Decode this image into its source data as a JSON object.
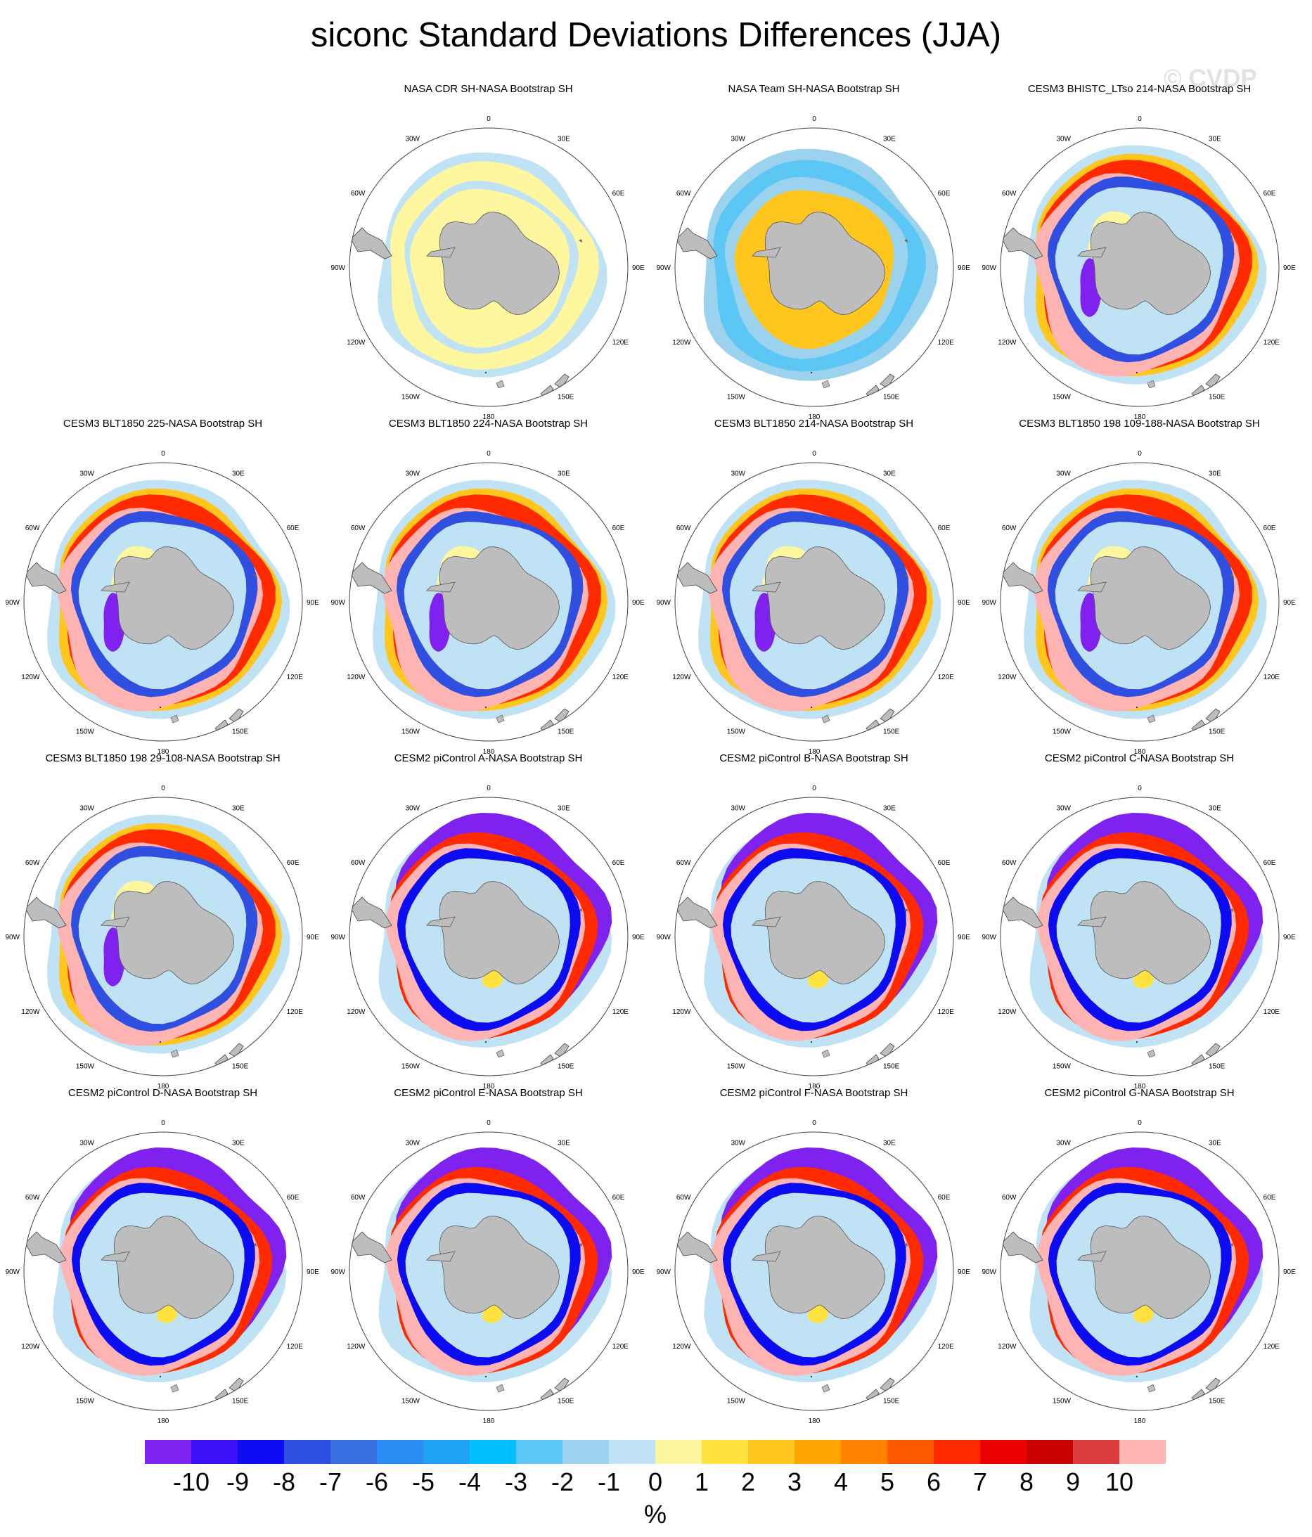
{
  "title": "siconc Standard Deviations Differences (JJA)",
  "watermark": "© CVDP",
  "chart_data": {
    "type": "polar_map_grid",
    "projection": "south polar stereographic",
    "variable": "siconc",
    "season": "JJA",
    "longitude_labels": [
      "0",
      "30E",
      "60E",
      "90E",
      "120E",
      "150E",
      "180",
      "150W",
      "120W",
      "90W",
      "60W",
      "30W"
    ],
    "panels": [
      {
        "title": "",
        "pattern": "blank"
      },
      {
        "title": "NASA CDR SH-NASA Bootstrap SH",
        "pattern": "cdr"
      },
      {
        "title": "NASA Team SH-NASA Bootstrap SH",
        "pattern": "team"
      },
      {
        "title": "CESM3 BHISTC_LTso 214-NASA Bootstrap SH",
        "pattern": "cesm3"
      },
      {
        "title": "CESM3 BLT1850 225-NASA Bootstrap SH",
        "pattern": "cesm3"
      },
      {
        "title": "CESM3 BLT1850 224-NASA Bootstrap SH",
        "pattern": "cesm3"
      },
      {
        "title": "CESM3 BLT1850 214-NASA Bootstrap SH",
        "pattern": "cesm3"
      },
      {
        "title": "CESM3 BLT1850 198 109-188-NASA Bootstrap SH",
        "pattern": "cesm3"
      },
      {
        "title": "CESM3 BLT1850 198 29-108-NASA Bootstrap SH",
        "pattern": "cesm3"
      },
      {
        "title": "CESM2 piControl A-NASA Bootstrap SH",
        "pattern": "cesm2"
      },
      {
        "title": "CESM2 piControl B-NASA Bootstrap SH",
        "pattern": "cesm2"
      },
      {
        "title": "CESM2 piControl C-NASA Bootstrap SH",
        "pattern": "cesm2"
      },
      {
        "title": "CESM2 piControl D-NASA Bootstrap SH",
        "pattern": "cesm2"
      },
      {
        "title": "CESM2 piControl E-NASA Bootstrap SH",
        "pattern": "cesm2"
      },
      {
        "title": "CESM2 piControl F-NASA Bootstrap SH",
        "pattern": "cesm2"
      },
      {
        "title": "CESM2 piControl G-NASA Bootstrap SH",
        "pattern": "cesm2"
      }
    ],
    "colorbar": {
      "unit": "%",
      "tick_labels": [
        "-10",
        "-9",
        "-8",
        "-7",
        "-6",
        "-5",
        "-4",
        "-3",
        "-2",
        "-1",
        "0",
        "1",
        "2",
        "3",
        "4",
        "5",
        "6",
        "7",
        "8",
        "9",
        "10"
      ],
      "colors": [
        "#7f22f0",
        "#3b10f5",
        "#0c0cf2",
        "#2f4fe0",
        "#3a6fe0",
        "#2a8cf5",
        "#1fa4f5",
        "#00bfff",
        "#5cc6f5",
        "#9bd2ee",
        "#bfe3f5",
        "#fef7a0",
        "#ffe140",
        "#ffc61e",
        "#ffa500",
        "#ff8300",
        "#ff5a00",
        "#ff2a00",
        "#eb0000",
        "#c80000",
        "#dc3c3c",
        "#ffb4b4"
      ]
    },
    "land_color": "#bdbdbd"
  }
}
